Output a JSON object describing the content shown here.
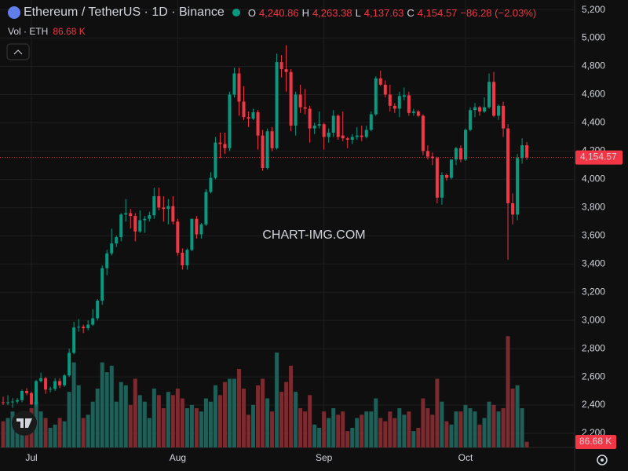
{
  "header": {
    "symbol": "Ethereum / TetherUS · 1D · Binance",
    "o_label": "O",
    "open": "4,240.86",
    "h_label": "H",
    "high": "4,263.38",
    "l_label": "L",
    "low": "4,137.63",
    "c_label": "C",
    "close": "4,154.57",
    "change": "−86.28 (−2.03%)",
    "vol_label": "Vol · ETH",
    "vol_value": "86.68 K",
    "watermark": "CHART-IMG.COM"
  },
  "chart_data": {
    "type": "candlestick",
    "categories": [
      null,
      null,
      null,
      null,
      null,
      null,
      "Jul",
      null,
      null,
      null,
      null,
      null,
      null,
      null,
      null,
      null,
      null,
      null,
      null,
      null,
      null,
      null,
      null,
      null,
      null,
      null,
      null,
      null,
      null,
      null,
      null,
      null,
      null,
      null,
      null,
      null,
      null,
      "Aug",
      null,
      null,
      null,
      null,
      null,
      null,
      null,
      null,
      null,
      null,
      null,
      null,
      null,
      null,
      null,
      null,
      null,
      null,
      null,
      null,
      null,
      null,
      null,
      null,
      null,
      null,
      null,
      null,
      null,
      null,
      "Sep",
      null,
      null,
      null,
      null,
      null,
      null,
      null,
      null,
      null,
      null,
      null,
      null,
      null,
      null,
      null,
      null,
      null,
      null,
      null,
      null,
      null,
      null,
      null,
      null,
      null,
      null,
      null,
      null,
      null,
      "Oct",
      null,
      null,
      null,
      null,
      null,
      null,
      null,
      null,
      null,
      null,
      null,
      null,
      null
    ],
    "open": [
      2420,
      2415,
      2420,
      2425,
      2435,
      2500,
      2485,
      2405,
      2570,
      2590,
      2510,
      2515,
      2570,
      2540,
      2610,
      2770,
      2950,
      2955,
      2945,
      2970,
      3015,
      3140,
      3370,
      3475,
      3545,
      3590,
      3750,
      3760,
      3740,
      3630,
      3710,
      3720,
      3745,
      3880,
      3800,
      3790,
      3810,
      3700,
      3480,
      3390,
      3500,
      3720,
      3610,
      3680,
      3910,
      4010,
      4260,
      4250,
      4220,
      4600,
      4750,
      4550,
      4440,
      4430,
      4475,
      4310,
      4080,
      4340,
      4220,
      4830,
      4780,
      4760,
      4380,
      4600,
      4510,
      4500,
      4360,
      4380,
      4390,
      4300,
      4330,
      4450,
      4310,
      4290,
      4280,
      4300,
      4310,
      4300,
      4350,
      4460,
      4715,
      4670,
      4600,
      4520,
      4500,
      4585,
      4595,
      4470,
      4480,
      4450,
      4200,
      4160,
      4150,
      3870,
      4030,
      4010,
      4140,
      4220,
      4140,
      4350,
      4490,
      4510,
      4480,
      4510,
      4690,
      4450,
      4520,
      4360,
      3830,
      3750,
      4150,
      4240.86
    ],
    "high": [
      2460,
      2470,
      2450,
      2450,
      2510,
      2520,
      2495,
      2580,
      2630,
      2600,
      2530,
      2590,
      2590,
      2620,
      2800,
      2990,
      3010,
      2970,
      3000,
      3080,
      3150,
      3390,
      3500,
      3650,
      3600,
      3760,
      3860,
      3790,
      3760,
      3780,
      3740,
      3770,
      3940,
      3940,
      3880,
      3860,
      3880,
      3720,
      3510,
      3510,
      3720,
      3740,
      3690,
      3930,
      4050,
      4300,
      4330,
      4330,
      4620,
      4790,
      4790,
      4660,
      4480,
      4500,
      4490,
      4350,
      4360,
      4370,
      4890,
      4880,
      4950,
      4780,
      4620,
      4670,
      4640,
      4520,
      4400,
      4480,
      4400,
      4360,
      4490,
      4460,
      4480,
      4300,
      4320,
      4370,
      4380,
      4380,
      4480,
      4730,
      4770,
      4700,
      4670,
      4540,
      4620,
      4650,
      4620,
      4500,
      4490,
      4460,
      4240,
      4190,
      4160,
      4050,
      4040,
      4140,
      4230,
      4240,
      4360,
      4510,
      4540,
      4520,
      4580,
      4750,
      4760,
      4530,
      4550,
      4390,
      3900,
      4180,
      4290,
      4263.38
    ],
    "low": [
      2400,
      2400,
      2380,
      2410,
      2420,
      2470,
      2400,
      2390,
      2560,
      2480,
      2490,
      2500,
      2520,
      2530,
      2600,
      2760,
      2920,
      2910,
      2930,
      2960,
      3000,
      3110,
      3320,
      3460,
      3520,
      3560,
      3700,
      3650,
      3560,
      3620,
      3620,
      3700,
      3720,
      3780,
      3700,
      3680,
      3680,
      3460,
      3360,
      3360,
      3490,
      3580,
      3580,
      3670,
      3900,
      4000,
      4150,
      4180,
      4200,
      4580,
      4450,
      4420,
      4370,
      4420,
      4210,
      4060,
      4070,
      4200,
      4210,
      4720,
      4620,
      4340,
      4310,
      4470,
      4460,
      4260,
      4320,
      4360,
      4210,
      4260,
      4300,
      4280,
      4270,
      4220,
      4250,
      4280,
      4270,
      4290,
      4340,
      4450,
      4660,
      4580,
      4480,
      4470,
      4440,
      4560,
      4450,
      4450,
      4440,
      4170,
      4140,
      4100,
      3830,
      3820,
      3990,
      4000,
      4100,
      4120,
      4130,
      4340,
      4440,
      4450,
      4470,
      4500,
      4440,
      4420,
      4300,
      3430,
      3680,
      3710,
      4110,
      4137.63
    ],
    "close": [
      2415,
      2420,
      2425,
      2435,
      2500,
      2485,
      2405,
      2570,
      2590,
      2510,
      2515,
      2570,
      2540,
      2610,
      2770,
      2950,
      2955,
      2945,
      2970,
      3015,
      3140,
      3370,
      3475,
      3545,
      3590,
      3750,
      3760,
      3740,
      3630,
      3710,
      3720,
      3745,
      3880,
      3800,
      3790,
      3810,
      3700,
      3480,
      3390,
      3500,
      3720,
      3610,
      3680,
      3910,
      4010,
      4260,
      4250,
      4220,
      4600,
      4750,
      4550,
      4440,
      4430,
      4475,
      4310,
      4080,
      4340,
      4220,
      4830,
      4780,
      4760,
      4380,
      4600,
      4510,
      4500,
      4360,
      4380,
      4390,
      4300,
      4330,
      4450,
      4300,
      4290,
      4280,
      4300,
      4310,
      4300,
      4350,
      4460,
      4715,
      4670,
      4600,
      4520,
      4500,
      4590,
      4595,
      4470,
      4480,
      4450,
      4200,
      4160,
      4150,
      3870,
      4030,
      4010,
      4140,
      4220,
      4140,
      4350,
      4490,
      4510,
      4480,
      4510,
      4690,
      4450,
      4520,
      4360,
      3830,
      3750,
      4150,
      4240.86,
      4154.57
    ],
    "volume": [
      400,
      450,
      550,
      300,
      350,
      500,
      600,
      700,
      550,
      450,
      300,
      350,
      450,
      400,
      850,
      1300,
      950,
      450,
      500,
      700,
      900,
      1300,
      1150,
      1250,
      700,
      1000,
      950,
      650,
      1050,
      800,
      700,
      450,
      900,
      800,
      600,
      850,
      800,
      900,
      750,
      600,
      650,
      600,
      550,
      750,
      700,
      950,
      800,
      1000,
      1050,
      1050,
      1200,
      900,
      500,
      650,
      950,
      1050,
      750,
      550,
      1450,
      850,
      1000,
      1250,
      850,
      600,
      550,
      800,
      350,
      300,
      550,
      450,
      600,
      500,
      550,
      250,
      300,
      450,
      500,
      550,
      550,
      750,
      450,
      400,
      550,
      450,
      600,
      500,
      550,
      250,
      300,
      750,
      600,
      500,
      1050,
      700,
      400,
      350,
      550,
      550,
      650,
      600,
      550,
      350,
      450,
      700,
      650,
      550,
      600,
      1700,
      900,
      950,
      600,
      86.68
    ],
    "ylim": [
      2100,
      5270
    ],
    "volume_lim": [
      0,
      2400
    ],
    "yticks": [
      {
        "value": 2200,
        "label": "2,200"
      },
      {
        "value": 2400,
        "label": "2,400"
      },
      {
        "value": 2600,
        "label": "2,600"
      },
      {
        "value": 2800,
        "label": "2,800"
      },
      {
        "value": 3000,
        "label": "3,000"
      },
      {
        "value": 3200,
        "label": "3,200"
      },
      {
        "value": 3400,
        "label": "3,400"
      },
      {
        "value": 3600,
        "label": "3,600"
      },
      {
        "value": 3800,
        "label": "3,800"
      },
      {
        "value": 4000,
        "label": "4,000"
      },
      {
        "value": 4200,
        "label": "4,200"
      },
      {
        "value": 4400,
        "label": "4,400"
      },
      {
        "value": 4600,
        "label": "4,600"
      },
      {
        "value": 4800,
        "label": "4,800"
      },
      {
        "value": 5000,
        "label": "5,000"
      },
      {
        "value": 5200,
        "label": "5,200"
      }
    ],
    "grid": true,
    "up_color": "#089981",
    "down_color": "#f23645",
    "volume_up_color": "#1f5f58",
    "volume_down_color": "#7a2b30"
  }
}
